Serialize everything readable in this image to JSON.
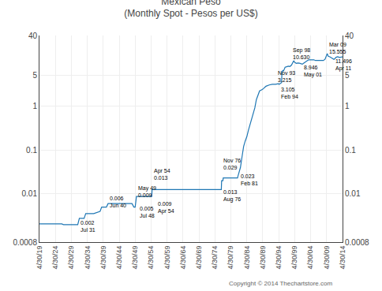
{
  "chart_data": {
    "type": "line",
    "title": "Mexican Peso\n(Monthly Spot - Pesos per US$)",
    "footnote": "Copyright © 2014 Thechartstore.com",
    "x": [
      1919,
      1926,
      1926.5,
      1931,
      1931.5,
      1933,
      1933.5,
      1935,
      1936,
      1938,
      1938.5,
      1940,
      1940.5,
      1948,
      1948.6,
      1949,
      1949.4,
      1954.2,
      1954.3,
      1976.0,
      1976.1,
      1976.5,
      1976.6,
      1980,
      1981.1,
      1981.2,
      1982,
      1982.5,
      1983,
      1983.5,
      1984,
      1984.5,
      1985,
      1985.5,
      1986,
      1986.5,
      1987,
      1987.5,
      1988,
      1988.5,
      1989,
      1989.5,
      1990,
      1991,
      1992,
      1993,
      1993.9,
      1994.1,
      1994.9,
      1995.0,
      1995.3,
      1995.5,
      1995.7,
      1996.0,
      1996.5,
      1997.0,
      1997.5,
      1998.0,
      1998.7,
      1999.0,
      1999.5,
      2000.0,
      2000.5,
      2001.4,
      2001.7,
      2002,
      2002.5,
      2003,
      2003.5,
      2004,
      2004.5,
      2005,
      2005.5,
      2006,
      2006.5,
      2007,
      2007.5,
      2008.0,
      2008.5,
      2008.7,
      2008.9,
      2009.2,
      2009.5,
      2010.0,
      2011.3,
      2011.5,
      2012,
      2012.5,
      2013,
      2013.5,
      2014
    ],
    "values": [
      0.00208,
      0.00208,
      0.002,
      0.002,
      0.00278,
      0.00278,
      0.00357,
      0.00357,
      0.00357,
      0.004,
      0.005,
      0.005,
      0.006,
      0.006,
      0.005,
      0.005,
      0.0087,
      0.0087,
      0.0125,
      0.0125,
      0.02,
      0.02,
      0.023,
      0.023,
      0.023,
      0.025,
      0.04,
      0.07,
      0.12,
      0.16,
      0.2,
      0.28,
      0.37,
      0.5,
      0.64,
      0.9,
      1.4,
      1.8,
      2.2,
      2.3,
      2.4,
      2.6,
      2.8,
      3.0,
      3.1,
      3.1,
      3.215,
      3.105,
      3.4,
      5.8,
      6.5,
      6.2,
      6.8,
      7.6,
      7.8,
      8.0,
      7.9,
      8.5,
      10.63,
      9.8,
      9.3,
      9.5,
      9.4,
      8.946,
      9.2,
      9.6,
      10.2,
      10.8,
      11.2,
      11.3,
      11.4,
      11.2,
      10.8,
      10.9,
      11.0,
      11.0,
      10.9,
      10.8,
      11.5,
      12.5,
      13.8,
      15.555,
      13.5,
      13.1,
      11.496,
      11.7,
      12.8,
      13.2,
      12.7,
      13.0,
      13.1
    ],
    "xlim": [
      1919,
      2014
    ],
    "ylim": [
      0.0008,
      40
    ],
    "y2lim": [
      0.0008,
      40
    ],
    "xticks": [
      {
        "value": 1919,
        "label": "4/30/19"
      },
      {
        "value": 1924,
        "label": "4/30/24"
      },
      {
        "value": 1929,
        "label": "4/30/29"
      },
      {
        "value": 1934,
        "label": "4/30/34"
      },
      {
        "value": 1939,
        "label": "4/30/39"
      },
      {
        "value": 1944,
        "label": "4/30/44"
      },
      {
        "value": 1949,
        "label": "4/30/49"
      },
      {
        "value": 1954,
        "label": "4/30/54"
      },
      {
        "value": 1959,
        "label": "4/30/59"
      },
      {
        "value": 1964,
        "label": "4/30/64"
      },
      {
        "value": 1969,
        "label": "4/30/69"
      },
      {
        "value": 1974,
        "label": "4/30/74"
      },
      {
        "value": 1979,
        "label": "4/30/79"
      },
      {
        "value": 1984,
        "label": "4/30/84"
      },
      {
        "value": 1989,
        "label": "4/30/89"
      },
      {
        "value": 1994,
        "label": "4/30/94"
      },
      {
        "value": 1999,
        "label": "4/30/99"
      },
      {
        "value": 2004,
        "label": "4/30/04"
      },
      {
        "value": 2009,
        "label": "4/30/09"
      },
      {
        "value": 2014,
        "label": "4/30/14"
      }
    ],
    "yticks": [
      0.0008,
      0.01,
      0.1,
      1,
      5,
      40
    ],
    "y2ticks": [
      0.0008,
      0.01,
      0.1,
      1,
      5,
      40
    ],
    "log": "y",
    "grid": true,
    "annotations": [
      {
        "x": 1931.3,
        "y": 0.00185,
        "text": "0.002\nJul 31"
      },
      {
        "x": 1940.5,
        "y": 0.0065,
        "text": "0.006\nJun 40"
      },
      {
        "x": 1949.5,
        "y": 0.0094,
        "text": "May 49\n0.009"
      },
      {
        "x": 1954.5,
        "y": 0.0138,
        "text": "Apr 54\n0.013"
      },
      {
        "x": 1950.0,
        "y": 0.0049,
        "text": "0.005\nJul 48"
      },
      {
        "x": 1955.5,
        "y": 0.0092,
        "text": "0.009\nApr 54"
      },
      {
        "x": 1976.2,
        "y": 0.031,
        "text": "Nov 76\n0.029"
      },
      {
        "x": 1976.2,
        "y": 0.012,
        "text": "0.013\nAug 76"
      },
      {
        "x": 1981.5,
        "y": 0.024,
        "text": "0.023\nFeb 81"
      },
      {
        "x": 1993.2,
        "y": 3.5,
        "text": "Nov 93\n3.215"
      },
      {
        "x": 1994.2,
        "y": 2.6,
        "text": "3.105\nFeb 94"
      },
      {
        "x": 1997.8,
        "y": 11.8,
        "text": "Sep 98\n10.630"
      },
      {
        "x": 2001.3,
        "y": 8.0,
        "text": "8.946\nMay 01"
      },
      {
        "x": 2009.2,
        "y": 17.5,
        "text": "Mar 09\n15.555"
      },
      {
        "x": 2011.2,
        "y": 10.2,
        "text": "11.496\nApr 11"
      }
    ]
  }
}
